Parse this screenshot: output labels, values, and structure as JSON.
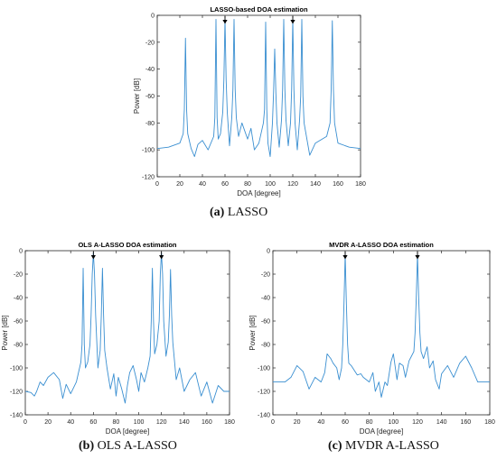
{
  "captions": [
    {
      "letter": "(a)",
      "text": "LASSO"
    },
    {
      "letter": "(b)",
      "text": "OLS A-LASSO"
    },
    {
      "letter": "(c)",
      "text": "MVDR A-LASSO"
    }
  ],
  "colors": {
    "line": "#3a8fd1",
    "axes": "#262626",
    "marker": "#000000"
  },
  "chart_data": [
    {
      "type": "line",
      "title": "LASSO-based DOA estimation",
      "xlabel": "DOA [degree]",
      "ylabel": "Power [dB]",
      "xlim": [
        0,
        180
      ],
      "ylim": [
        -120,
        0
      ],
      "xticks": [
        0,
        20,
        40,
        60,
        80,
        100,
        120,
        140,
        160,
        180
      ],
      "yticks": [
        0,
        -20,
        -40,
        -60,
        -80,
        -100,
        -120
      ],
      "grid": false,
      "baseline": -99,
      "markers": [
        60,
        120
      ],
      "x": [
        0,
        10,
        20,
        23,
        24,
        25,
        26,
        27,
        30,
        33,
        36,
        40,
        45,
        50,
        51,
        52,
        53,
        54,
        56,
        58,
        59,
        60,
        61,
        62,
        64,
        66,
        67,
        68,
        69,
        70,
        72,
        75,
        80,
        83,
        86,
        90,
        94,
        95,
        96,
        97,
        98,
        100,
        102,
        103,
        104,
        105,
        106,
        108,
        110,
        111,
        112,
        113,
        114,
        116,
        118,
        119,
        120,
        121,
        122,
        124,
        126,
        127,
        128,
        129,
        130,
        135,
        140,
        150,
        153,
        154,
        155,
        156,
        157,
        160,
        170,
        180
      ],
      "y": [
        -99,
        -98,
        -95,
        -88,
        -70,
        -17,
        -70,
        -88,
        -99,
        -105,
        -96,
        -93,
        -100,
        -90,
        -76,
        -3,
        -76,
        -92,
        -88,
        -72,
        -48,
        -3,
        -48,
        -72,
        -97,
        -76,
        -55,
        -3,
        -55,
        -76,
        -90,
        -80,
        -92,
        -84,
        -100,
        -95,
        -80,
        -70,
        -5,
        -70,
        -95,
        -105,
        -80,
        -57,
        -25,
        -57,
        -80,
        -98,
        -78,
        -55,
        -3,
        -55,
        -78,
        -97,
        -80,
        -55,
        -3,
        -55,
        -80,
        -100,
        -78,
        -60,
        -3,
        -60,
        -80,
        -104,
        -95,
        -90,
        -80,
        -55,
        -4,
        -55,
        -80,
        -95,
        -98,
        -99
      ]
    },
    {
      "type": "line",
      "title": "OLS A-LASSO DOA estimation",
      "xlabel": "DOA [degree]",
      "ylabel": "Power [dB]",
      "xlim": [
        0,
        180
      ],
      "ylim": [
        -140,
        0
      ],
      "xticks": [
        0,
        20,
        40,
        60,
        80,
        100,
        120,
        140,
        160,
        180
      ],
      "yticks": [
        0,
        -20,
        -40,
        -60,
        -80,
        -100,
        -120,
        -140
      ],
      "grid": false,
      "baseline": -120,
      "markers": [
        60,
        120
      ],
      "x": [
        0,
        5,
        8,
        10,
        13,
        16,
        20,
        25,
        30,
        33,
        36,
        40,
        45,
        49,
        50,
        51,
        52,
        53,
        55,
        57,
        58,
        59,
        60,
        61,
        62,
        64,
        66,
        67,
        68,
        69,
        70,
        72,
        75,
        78,
        80,
        82,
        85,
        88,
        90,
        92,
        95,
        98,
        100,
        102,
        105,
        108,
        110,
        111,
        112,
        113,
        114,
        116,
        118,
        119,
        120,
        121,
        122,
        124,
        126,
        127,
        128,
        129,
        130,
        133,
        136,
        140,
        145,
        150,
        155,
        160,
        165,
        170,
        175,
        180
      ],
      "y": [
        -120,
        -121,
        -124,
        -120,
        -112,
        -115,
        -108,
        -104,
        -110,
        -126,
        -114,
        -122,
        -112,
        -95,
        -80,
        -15,
        -80,
        -100,
        -95,
        -80,
        -55,
        -20,
        -2,
        -20,
        -55,
        -100,
        -85,
        -55,
        -15,
        -55,
        -85,
        -100,
        -118,
        -105,
        -124,
        -108,
        -118,
        -130,
        -115,
        -104,
        -98,
        -110,
        -120,
        -104,
        -112,
        -100,
        -90,
        -60,
        -15,
        -60,
        -88,
        -80,
        -60,
        -20,
        -2,
        -20,
        -60,
        -90,
        -78,
        -55,
        -16,
        -55,
        -78,
        -110,
        -100,
        -120,
        -110,
        -104,
        -124,
        -112,
        -130,
        -115,
        -120,
        -120
      ]
    },
    {
      "type": "line",
      "title": "MVDR A-LASSO DOA estimation",
      "xlabel": "DOA [degree]",
      "ylabel": "Power [dB]",
      "xlim": [
        0,
        180
      ],
      "ylim": [
        -140,
        0
      ],
      "xticks": [
        0,
        20,
        40,
        60,
        80,
        100,
        120,
        140,
        160,
        180
      ],
      "yticks": [
        0,
        -20,
        -40,
        -60,
        -80,
        -100,
        -120,
        -140
      ],
      "grid": false,
      "baseline": -112,
      "markers": [
        60,
        120
      ],
      "x": [
        0,
        5,
        10,
        15,
        20,
        25,
        30,
        35,
        40,
        43,
        45,
        48,
        50,
        53,
        55,
        57,
        58,
        59,
        60,
        61,
        62,
        63,
        65,
        70,
        73,
        75,
        80,
        83,
        85,
        88,
        90,
        93,
        95,
        98,
        100,
        103,
        105,
        108,
        110,
        113,
        115,
        117,
        118,
        119,
        120,
        121,
        122,
        123,
        125,
        128,
        130,
        133,
        135,
        138,
        140,
        145,
        150,
        155,
        160,
        165,
        170,
        175,
        180
      ],
      "y": [
        -112,
        -112,
        -112,
        -108,
        -98,
        -103,
        -118,
        -108,
        -112,
        -104,
        -88,
        -92,
        -96,
        -100,
        -110,
        -100,
        -80,
        -45,
        -3,
        -45,
        -80,
        -96,
        -98,
        -106,
        -105,
        -108,
        -112,
        -104,
        -120,
        -112,
        -125,
        -112,
        -115,
        -95,
        -88,
        -110,
        -96,
        -98,
        -108,
        -94,
        -90,
        -86,
        -70,
        -40,
        -3,
        -40,
        -70,
        -86,
        -92,
        -82,
        -100,
        -94,
        -110,
        -118,
        -105,
        -98,
        -108,
        -96,
        -90,
        -100,
        -112,
        -112,
        -112
      ]
    }
  ]
}
